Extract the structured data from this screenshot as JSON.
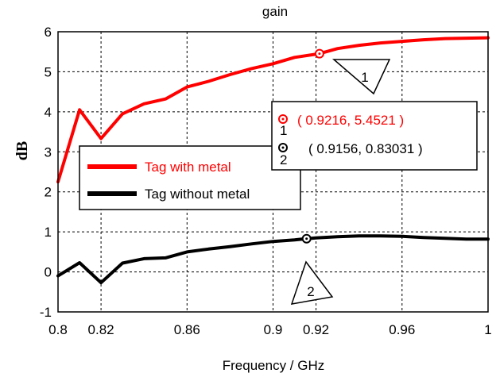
{
  "chart_data": {
    "type": "line",
    "title": "gain",
    "xlabel": "Frequency / GHz",
    "ylabel": "dB",
    "xlim": [
      0.8,
      1.0
    ],
    "ylim": [
      -1,
      6
    ],
    "xticks": [
      "0.8",
      "0.82",
      "0.86",
      "0.9",
      "0.92",
      "0.96",
      "1"
    ],
    "xtick_values": [
      0.8,
      0.82,
      0.86,
      0.9,
      0.92,
      0.96,
      1.0
    ],
    "yticks": [
      "-1",
      "0",
      "1",
      "2",
      "3",
      "4",
      "5",
      "6"
    ],
    "ytick_values": [
      -1,
      0,
      1,
      2,
      3,
      4,
      5,
      6
    ],
    "grid": true,
    "legend_position": "center-left",
    "series": [
      {
        "name": "Tag with metal",
        "color": "#ff0000",
        "x": [
          0.8,
          0.81,
          0.82,
          0.83,
          0.84,
          0.85,
          0.86,
          0.87,
          0.88,
          0.89,
          0.9,
          0.91,
          0.9216,
          0.93,
          0.94,
          0.95,
          0.96,
          0.97,
          0.98,
          0.99,
          1.0
        ],
        "y": [
          2.25,
          4.05,
          3.33,
          3.95,
          4.2,
          4.32,
          4.62,
          4.76,
          4.93,
          5.08,
          5.2,
          5.36,
          5.4521,
          5.58,
          5.66,
          5.72,
          5.76,
          5.8,
          5.83,
          5.84,
          5.85
        ]
      },
      {
        "name": "Tag without metal",
        "color": "#000000",
        "x": [
          0.8,
          0.81,
          0.82,
          0.83,
          0.84,
          0.85,
          0.86,
          0.87,
          0.88,
          0.89,
          0.9,
          0.91,
          0.9156,
          0.92,
          0.93,
          0.94,
          0.95,
          0.96,
          0.97,
          0.98,
          0.99,
          1.0
        ],
        "y": [
          -0.1,
          0.23,
          -0.27,
          0.22,
          0.33,
          0.35,
          0.5,
          0.57,
          0.63,
          0.7,
          0.76,
          0.8,
          0.83031,
          0.85,
          0.88,
          0.9,
          0.9,
          0.89,
          0.86,
          0.84,
          0.82,
          0.82
        ]
      }
    ],
    "markers": [
      {
        "id": "1",
        "x": 0.9216,
        "y": 5.4521,
        "label": "( 0.9216, 5.4521 )",
        "color": "#ff0000"
      },
      {
        "id": "2",
        "x": 0.9156,
        "y": 0.83031,
        "label": "( 0.9156, 0.83031 )",
        "color": "#000000"
      }
    ]
  }
}
